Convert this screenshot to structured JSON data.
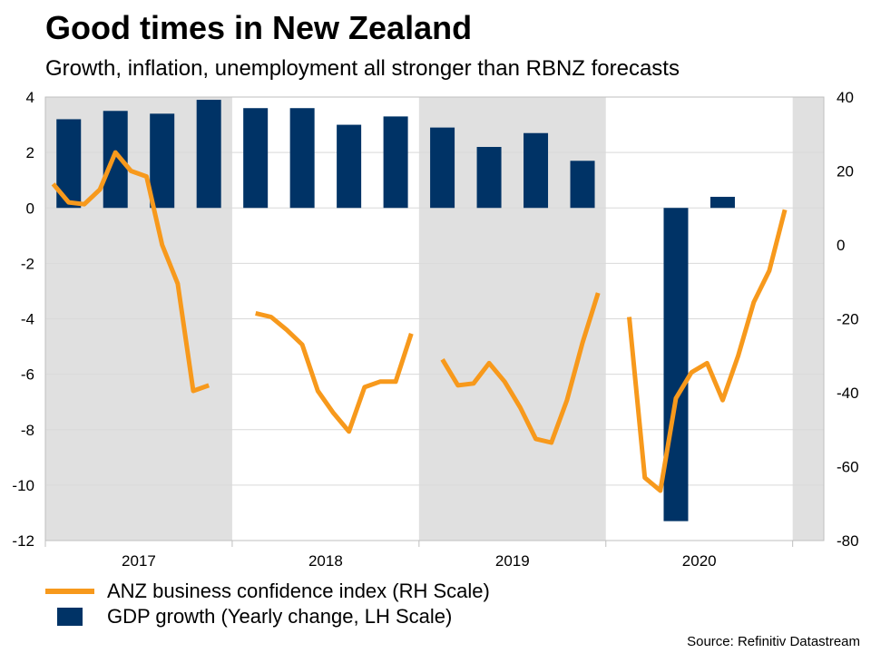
{
  "title": "Good times in New Zealand",
  "subtitle": "Growth, inflation, unemployment all stronger than RBNZ forecasts",
  "source": "Source: Refinitiv Datastream",
  "colors": {
    "confidence": "#F7991C",
    "gdp": "#003366",
    "shading": "#E0E0E0",
    "grid": "#D9D9D9"
  },
  "chart_data": {
    "type": "bar",
    "x_categories": [
      "2017",
      "2018",
      "2019",
      "2020"
    ],
    "left_axis": {
      "range": [
        -12,
        4
      ],
      "ticks": [
        4,
        2,
        0,
        -2,
        -4,
        -6,
        -8,
        -10,
        -12
      ],
      "tick_labels": [
        "4",
        "2",
        "0",
        "-2",
        "-4",
        "-6",
        "-8",
        "-10",
        "-12"
      ]
    },
    "right_axis": {
      "range": [
        -80,
        40
      ],
      "ticks": [
        40,
        20,
        0,
        -20,
        -40,
        -60,
        -80
      ],
      "tick_labels": [
        "40",
        "20",
        "0",
        "-20",
        "-40",
        "-60",
        "-80"
      ]
    },
    "shaded_periods": [
      [
        0,
        12
      ],
      [
        24,
        36
      ],
      [
        48,
        50
      ]
    ],
    "series": [
      {
        "name": "GDP growth (Yearly change, LH Scale)",
        "type": "bar",
        "axis": "left",
        "points": [
          {
            "month": 1,
            "value": 3.2
          },
          {
            "month": 4,
            "value": 3.5
          },
          {
            "month": 7,
            "value": 3.4
          },
          {
            "month": 10,
            "value": 3.9
          },
          {
            "month": 13,
            "value": 3.6
          },
          {
            "month": 16,
            "value": 3.6
          },
          {
            "month": 19,
            "value": 3.0
          },
          {
            "month": 22,
            "value": 3.3
          },
          {
            "month": 25,
            "value": 2.9
          },
          {
            "month": 28,
            "value": 2.2
          },
          {
            "month": 31,
            "value": 2.7
          },
          {
            "month": 34,
            "value": 1.7
          },
          {
            "month": 40,
            "value": -11.3
          },
          {
            "month": 43,
            "value": 0.4
          }
        ]
      },
      {
        "name": "ANZ business confidence index (RH Scale)",
        "type": "line",
        "axis": "right",
        "segments": [
          [
            [
              0,
              16.5
            ],
            [
              1,
              11.5
            ],
            [
              2,
              11
            ],
            [
              3,
              15
            ],
            [
              4,
              25
            ],
            [
              5,
              20
            ],
            [
              6,
              18.5
            ],
            [
              7,
              0
            ],
            [
              8,
              -10.5
            ],
            [
              9,
              -39.5
            ],
            [
              10,
              -38
            ]
          ],
          [
            [
              13,
              -18.5
            ],
            [
              14,
              -19.5
            ],
            [
              15,
              -23
            ],
            [
              16,
              -27
            ],
            [
              17,
              -39.5
            ],
            [
              18,
              -45.5
            ],
            [
              19,
              -50.5
            ],
            [
              20,
              -38.5
            ],
            [
              21,
              -37
            ],
            [
              22,
              -37
            ],
            [
              23,
              -24
            ]
          ],
          [
            [
              25,
              -31
            ],
            [
              26,
              -38
            ],
            [
              27,
              -37.5
            ],
            [
              28,
              -32
            ],
            [
              29,
              -37
            ],
            [
              30,
              -44
            ],
            [
              31,
              -52.5
            ],
            [
              32,
              -53.5
            ],
            [
              33,
              -42
            ],
            [
              34,
              -26.5
            ],
            [
              35,
              -13
            ]
          ],
          [
            [
              37,
              -19.5
            ],
            [
              38,
              -63
            ],
            [
              39,
              -66.5
            ],
            [
              40,
              -41.5
            ],
            [
              41,
              -34.5
            ],
            [
              42,
              -32
            ],
            [
              43,
              -42
            ],
            [
              44,
              -30
            ],
            [
              45,
              -15.5
            ],
            [
              46,
              -7
            ],
            [
              47,
              9.5
            ]
          ]
        ]
      }
    ]
  },
  "legend": [
    {
      "label": "ANZ business confidence index (RH Scale)"
    },
    {
      "label": "GDP growth (Yearly change, LH Scale)"
    }
  ]
}
